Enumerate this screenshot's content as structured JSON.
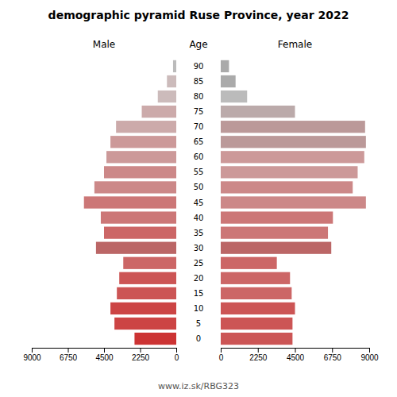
{
  "chart_data": {
    "type": "pyramid",
    "title": "demographic pyramid Ruse Province, year 2022",
    "ylabel": "Age",
    "annotations": [
      "www.iz.sk/RBG323"
    ],
    "categories": [
      "0",
      "5",
      "10",
      "15",
      "20",
      "25",
      "30",
      "35",
      "40",
      "45",
      "50",
      "55",
      "60",
      "65",
      "70",
      "75",
      "80",
      "85",
      "90"
    ],
    "series": [
      {
        "name": "Male",
        "colors": [
          "#cc3333",
          "#cc4444",
          "#cc4444",
          "#cc5555",
          "#cc5555",
          "#cc6666",
          "#bb6666",
          "#cc6666",
          "#cc7777",
          "#cc7777",
          "#cc8888",
          "#cc8888",
          "#cc9999",
          "#cc9999",
          "#ccaaaa",
          "#ccaaaa",
          "#ccbbbb",
          "#ccbbbb",
          "#bbbbbb"
        ],
        "values": [
          2600,
          3850,
          4100,
          3700,
          3550,
          3300,
          5000,
          4500,
          4700,
          5750,
          5100,
          4500,
          4350,
          4100,
          3750,
          2150,
          1150,
          580,
          200
        ]
      },
      {
        "name": "Female",
        "colors": [
          "#cc5555",
          "#cc5555",
          "#cc5555",
          "#cc6666",
          "#cc6666",
          "#cc6666",
          "#bb6666",
          "#cc7777",
          "#cc7777",
          "#cc8888",
          "#cc8888",
          "#cc9999",
          "#cc9999",
          "#bb9999",
          "#bb9999",
          "#bbaaaa",
          "#bbbbbb",
          "#aaaaaa",
          "#aaaaaa"
        ],
        "values": [
          4350,
          4350,
          4500,
          4300,
          4200,
          3400,
          6700,
          6500,
          6800,
          8800,
          8000,
          8300,
          8700,
          8800,
          8750,
          4500,
          1600,
          900,
          500
        ]
      }
    ],
    "xlim": [
      0,
      9000
    ],
    "xticks": [
      0,
      2250,
      4500,
      6750,
      9000
    ],
    "grid": false
  }
}
